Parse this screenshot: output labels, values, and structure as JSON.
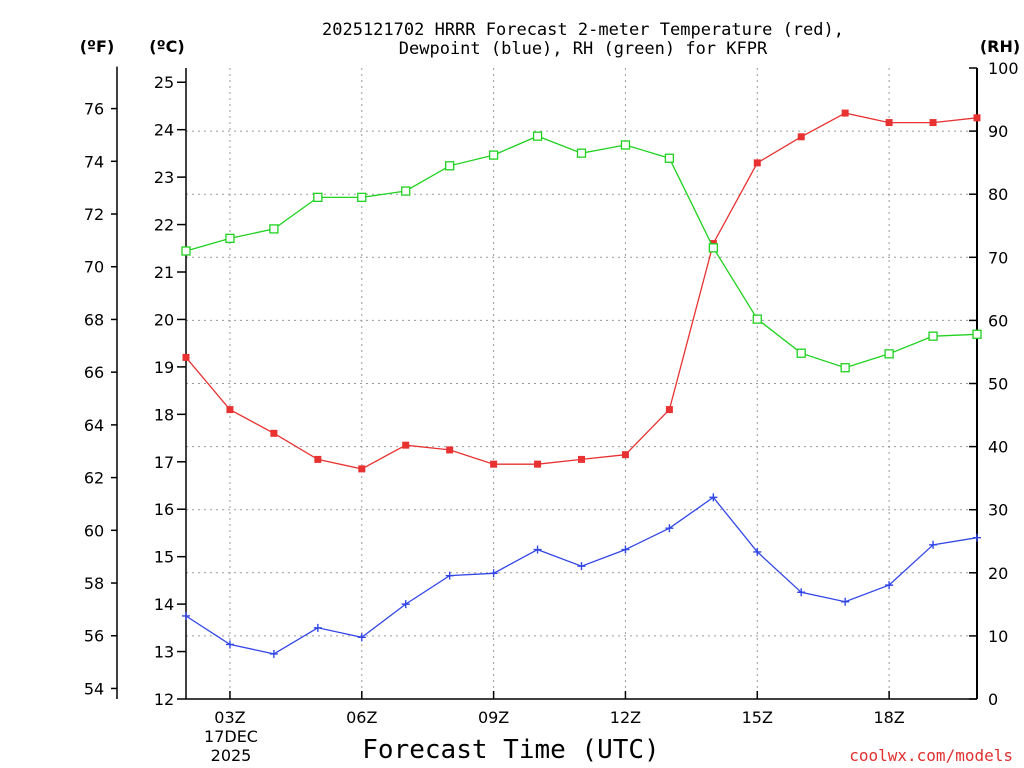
{
  "chart_data": {
    "type": "line",
    "title_lines": [
      "2025121702 HRRR Forecast 2-meter Temperature (red),",
      "Dewpoint (blue), RH (green) for KFPR"
    ],
    "xlabel": "Forecast Time (UTC)",
    "credit": "coolwx.com/models",
    "units": {
      "fahrenheit": "(ºF)",
      "celsius": "(ºC)",
      "rh": "(RH)"
    },
    "date_lines": [
      "17DEC",
      "2025"
    ],
    "x_hours": [
      2,
      3,
      4,
      5,
      6,
      7,
      8,
      9,
      10,
      11,
      12,
      13,
      14,
      15,
      16,
      17,
      18,
      19,
      20
    ],
    "x_ticks": [
      {
        "hour": 3,
        "label": "03Z"
      },
      {
        "hour": 6,
        "label": "06Z"
      },
      {
        "hour": 9,
        "label": "09Z"
      },
      {
        "hour": 12,
        "label": "12Z"
      },
      {
        "hour": 15,
        "label": "15Z"
      },
      {
        "hour": 18,
        "label": "18Z"
      }
    ],
    "x_range": [
      2,
      20
    ],
    "celsius_range": [
      12,
      25.3
    ],
    "celsius_ticks": [
      12,
      13,
      14,
      15,
      16,
      17,
      18,
      19,
      20,
      21,
      22,
      23,
      24,
      25
    ],
    "fahrenheit_ticks": [
      54,
      56,
      58,
      60,
      62,
      64,
      66,
      68,
      70,
      72,
      74,
      76
    ],
    "rh_range": [
      0,
      100
    ],
    "rh_ticks": [
      0,
      10,
      20,
      30,
      40,
      50,
      60,
      70,
      80,
      90,
      100
    ],
    "series": [
      {
        "name": "Temperature",
        "axis": "celsius",
        "color": "#e83232",
        "marker": "filled-square",
        "values": [
          19.2,
          18.1,
          17.6,
          17.05,
          16.85,
          17.35,
          17.25,
          16.95,
          16.95,
          17.05,
          17.15,
          18.1,
          21.6,
          23.3,
          23.85,
          24.35,
          24.15,
          24.15,
          24.25
        ]
      },
      {
        "name": "Dewpoint",
        "axis": "celsius",
        "color": "#3246e6",
        "marker": "plus",
        "values": [
          13.75,
          13.15,
          12.95,
          13.5,
          13.3,
          14.0,
          14.6,
          14.65,
          15.15,
          14.8,
          15.15,
          15.6,
          16.25,
          15.1,
          14.25,
          14.05,
          14.4,
          15.25,
          15.4
        ]
      },
      {
        "name": "RH",
        "axis": "rh",
        "color": "#1ed21e",
        "marker": "open-square",
        "values": [
          71,
          73,
          74.5,
          79.5,
          79.5,
          80.5,
          84.5,
          86.2,
          89.2,
          86.5,
          87.8,
          85.7,
          71.5,
          60.2,
          54.8,
          52.5,
          54.7,
          57.5,
          57.8
        ]
      }
    ]
  }
}
